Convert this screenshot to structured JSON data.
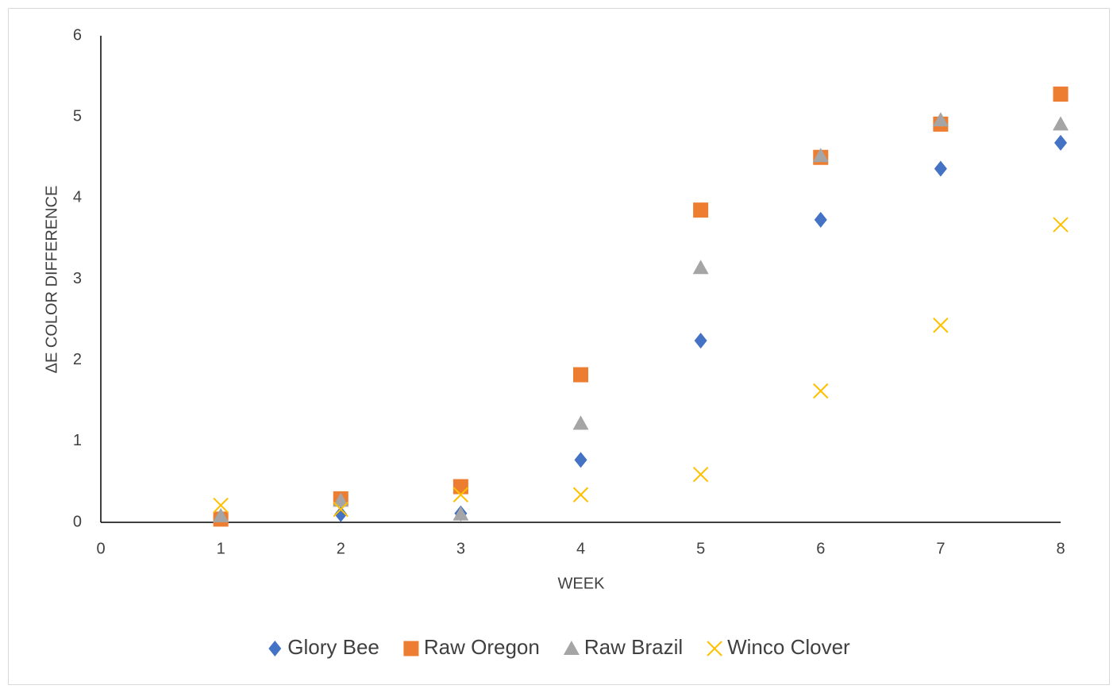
{
  "chart_data": {
    "type": "scatter",
    "x_label": "WEEK",
    "y_label": "ΔE COLOR DIFFERENCE",
    "xlim": [
      0,
      8
    ],
    "xticks": [
      0,
      1,
      2,
      3,
      4,
      5,
      6,
      7,
      8
    ],
    "ylim": [
      0,
      6
    ],
    "yticks": [
      0,
      1,
      2,
      3,
      4,
      5,
      6
    ],
    "grid": false,
    "legend": "bottom",
    "x": [
      1,
      2,
      3,
      4,
      5,
      6,
      7,
      8
    ],
    "series": [
      {
        "name": "Glory Bee",
        "color": "#4472c4",
        "marker": "diamond",
        "values": [
          0.05,
          0.1,
          0.11,
          0.77,
          2.24,
          3.73,
          4.36,
          4.68
        ]
      },
      {
        "name": "Raw Oregon",
        "color": "#ed7d31",
        "marker": "square",
        "values": [
          0.04,
          0.29,
          0.44,
          1.82,
          3.85,
          4.5,
          4.91,
          5.28
        ]
      },
      {
        "name": "Raw Brazil",
        "color": "#a5a5a5",
        "marker": "triangle",
        "values": [
          0.08,
          0.27,
          0.1,
          1.22,
          3.14,
          4.52,
          4.96,
          4.91
        ]
      },
      {
        "name": "Winco Clover",
        "color": "#ffc000",
        "marker": "x",
        "values": [
          0.21,
          0.16,
          0.34,
          0.34,
          0.59,
          1.62,
          2.43,
          3.67
        ]
      }
    ]
  }
}
